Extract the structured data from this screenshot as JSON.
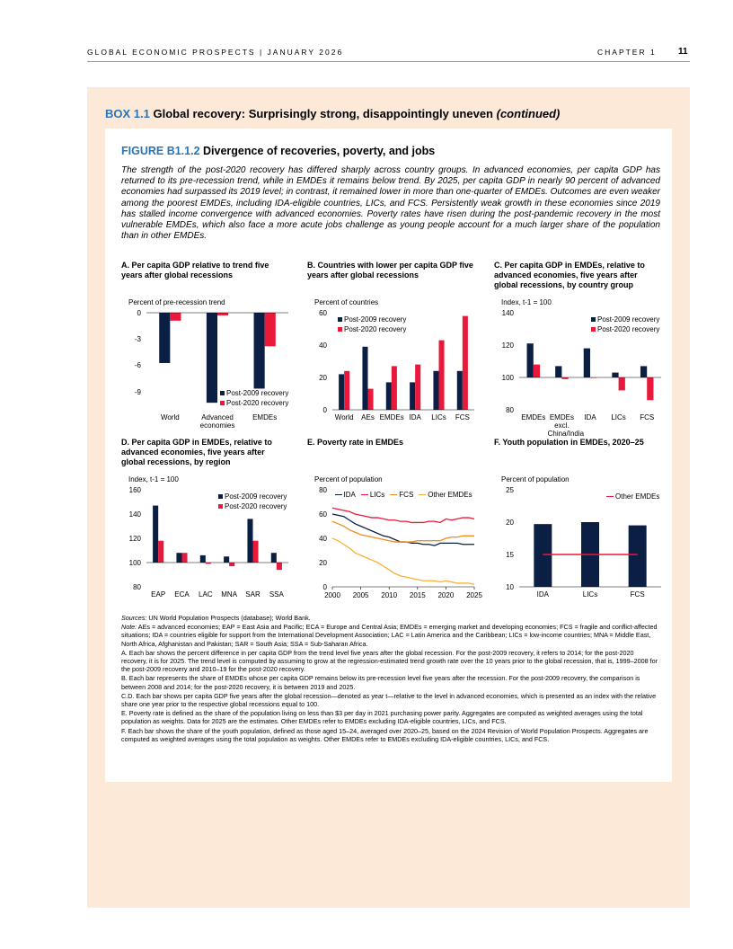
{
  "header": {
    "publication": "GLOBAL ECONOMIC PROSPECTS | JANUARY 2026",
    "chapter": "CHAPTER 1",
    "page": "11"
  },
  "box": {
    "label": "BOX 1.1",
    "title": "Global recovery: Surprisingly strong, disappointingly uneven",
    "suffix": "(continued)"
  },
  "figure": {
    "label": "FIGURE B1.1.2",
    "title": "Divergence of recoveries, poverty, and jobs",
    "intro": "The strength of the post-2020 recovery has differed sharply across country groups. In advanced economies, per capita GDP has returned to its pre-recession trend, while in EMDEs it remains below trend. By 2025, per capita GDP in nearly 90 percent of advanced economies had surpassed its 2019 level; in contrast, it remained lower in more than one-quarter of EMDEs. Outcomes are even weaker among the poorest EMDEs, including IDA-eligible countries, LICs, and FCS. Persistently weak growth in these economies since 2019 has stalled income convergence with advanced economies. Poverty rates have risen during the post-pandemic recovery in the most vulnerable EMDEs, which also face a more acute jobs challenge as young people account for a much larger share of the population than in other EMDEs."
  },
  "chart_data": [
    {
      "type": "bar",
      "title": "A. Per capita GDP relative to trend five years after global recessions",
      "y_label": "Percent of pre-recession trend",
      "categories": [
        "World",
        "Advanced economies",
        "EMDEs"
      ],
      "series": [
        {
          "name": "Post-2009 recovery",
          "color": "#0b1f45",
          "values": [
            -5.7,
            -10.2,
            -8.6
          ]
        },
        {
          "name": "Post-2020 recovery",
          "color": "#e8193a",
          "values": [
            -0.9,
            -0.3,
            -3.8
          ]
        }
      ],
      "ylim": [
        -11,
        0
      ],
      "yticks": [
        0,
        -3,
        -6,
        -9
      ],
      "legend": "lower right"
    },
    {
      "type": "bar",
      "title": "B. Countries with lower per capita GDP five years after global recessions",
      "y_label": "Percent of countries",
      "categories": [
        "World",
        "AEs",
        "EMDEs",
        "IDA",
        "LICs",
        "FCS"
      ],
      "series": [
        {
          "name": "Post-2009 recovery",
          "color": "#0b1f45",
          "values": [
            22,
            39,
            17,
            17,
            24,
            24
          ]
        },
        {
          "name": "Post-2020 recovery",
          "color": "#e8193a",
          "values": [
            24,
            13,
            27,
            28,
            43,
            58
          ]
        }
      ],
      "ylim": [
        0,
        60
      ],
      "yticks": [
        0,
        20,
        40,
        60
      ],
      "legend": "upper left"
    },
    {
      "type": "bar",
      "title": "C. Per capita GDP in EMDEs, relative to advanced economies, five years after global recessions, by country group",
      "y_label": "Index, t-1 = 100",
      "categories": [
        "EMDEs",
        "EMDEs excl. China/India",
        "IDA",
        "LICs",
        "FCS"
      ],
      "series": [
        {
          "name": "Post-2009 recovery",
          "color": "#0b1f45",
          "values": [
            121,
            107,
            118,
            103,
            107
          ]
        },
        {
          "name": "Post-2020 recovery",
          "color": "#e8193a",
          "values": [
            108,
            99,
            100,
            92,
            86
          ]
        }
      ],
      "ylim": [
        80,
        140
      ],
      "yticks": [
        80,
        100,
        120,
        140
      ],
      "baseline": 100,
      "legend": "upper right"
    },
    {
      "type": "bar",
      "title": "D. Per capita GDP in EMDEs, relative to advanced economies, five years after global recessions, by region",
      "y_label": "Index, t-1 = 100",
      "categories": [
        "EAP",
        "ECA",
        "LAC",
        "MNA",
        "SAR",
        "SSA"
      ],
      "series": [
        {
          "name": "Post-2009 recovery",
          "color": "#0b1f45",
          "values": [
            147,
            108,
            106,
            105,
            136,
            108
          ]
        },
        {
          "name": "Post-2020 recovery",
          "color": "#e8193a",
          "values": [
            118,
            108,
            99,
            97,
            118,
            94
          ]
        }
      ],
      "ylim": [
        80,
        160
      ],
      "yticks": [
        80,
        100,
        120,
        140,
        160
      ],
      "baseline": 100,
      "legend": "upper right"
    },
    {
      "type": "line",
      "title": "E. Poverty rate in EMDEs",
      "y_label": "Percent of population",
      "x": [
        2000,
        2001,
        2002,
        2003,
        2004,
        2005,
        2006,
        2007,
        2008,
        2009,
        2010,
        2011,
        2012,
        2013,
        2014,
        2015,
        2016,
        2017,
        2018,
        2019,
        2020,
        2021,
        2022,
        2023,
        2024,
        2025
      ],
      "series": [
        {
          "name": "IDA",
          "color": "#0b1f45",
          "values": [
            60,
            59,
            58,
            55,
            52,
            50,
            48,
            46,
            44,
            42,
            41,
            39,
            37,
            37,
            36,
            36,
            35,
            35,
            34,
            36,
            36,
            36,
            36,
            35,
            35,
            35
          ]
        },
        {
          "name": "LICs",
          "color": "#e8193a",
          "values": [
            65,
            64,
            63,
            62,
            60,
            59,
            58,
            57,
            57,
            56,
            55,
            55,
            54,
            54,
            53,
            53,
            53,
            54,
            54,
            53,
            56,
            55,
            56,
            57,
            57,
            56
          ]
        },
        {
          "name": "FCS",
          "color": "#f08c1e",
          "values": [
            54,
            52,
            50,
            47,
            45,
            43,
            42,
            41,
            40,
            39,
            38,
            37,
            37,
            37,
            37,
            38,
            38,
            38,
            38,
            38,
            40,
            41,
            41,
            42,
            42,
            42
          ]
        },
        {
          "name": "Other EMDEs",
          "color": "#f9b233",
          "values": [
            40,
            38,
            35,
            32,
            28,
            26,
            24,
            22,
            20,
            17,
            14,
            11,
            9,
            8,
            7,
            6,
            5,
            5,
            5,
            4,
            5,
            4,
            3,
            3,
            3,
            2
          ]
        }
      ],
      "xlim": [
        2000,
        2025
      ],
      "xticks": [
        2000,
        2005,
        2010,
        2015,
        2020,
        2025
      ],
      "ylim": [
        0,
        80
      ],
      "yticks": [
        0,
        20,
        40,
        60,
        80
      ],
      "legend": "upper center"
    },
    {
      "type": "bar",
      "title": "F. Youth population in EMDEs, 2020–25",
      "y_label": "Percent of population",
      "categories": [
        "IDA",
        "LICs",
        "FCS"
      ],
      "series": [
        {
          "color": "#0b1f45",
          "values": [
            19.7,
            20,
            19.5
          ]
        },
        {
          "name": "Other EMDEs",
          "type": "line",
          "color": "#e8193a",
          "values": [
            15,
            15,
            15
          ]
        }
      ],
      "ylim": [
        10,
        25
      ],
      "yticks": [
        10,
        15,
        20,
        25
      ],
      "legend": "upper right"
    }
  ],
  "notes": {
    "sources": {
      "label": "Sources:",
      "text": "UN World Population Prospects (database); World Bank."
    },
    "note": {
      "label": "Note:",
      "text": "AEs = advanced economies; EAP = East Asia and Pacific; ECA = Europe and Central Asia; EMDEs = emerging market and developing economies; FCS = fragile and conflict-affected situations; IDA = countries eligible for support from the International Development Association; LAC = Latin America and the Caribbean; LICs = low-income countries; MNA = Middle East, North Africa, Afghanistan and Pakistan; SAR = South Asia; SSA = Sub-Saharan Africa."
    },
    "panels": [
      "A. Each bar shows the percent difference in per capita GDP from the trend level five years after the global recession. For the post-2009 recovery, it refers to 2014; for the post-2020 recovery, it is for 2025. The trend level is computed by assuming to grow at the regression-estimated trend growth rate over the 10 years prior to the global recession, that is, 1999–2008 for the post-2009 recovery and 2010–19 for the post-2020 recovery.",
      "B. Each bar represents the share of EMDEs whose per capita GDP remains below its pre-recession level five years after the recession. For the post-2009 recovery, the comparison is between 2008 and 2014; for the post-2020 recovery, it is between 2019 and 2025.",
      "C.D. Each bar shows per capita GDP five years after the global recession—denoted as year t—relative to the level in advanced economies, which is presented as an index with the relative share one year prior to the respective global recessions equal to 100.",
      "E. Poverty rate is defined as the share of the population living on less than $3 per day in 2021 purchasing power parity. Aggregates are computed as weighted averages using the total population as weights. Data for 2025 are the estimates. Other EMDEs refer to EMDEs excluding IDA-eligible countries, LICs, and FCS.",
      "F. Each bar shows the share of the youth population, defined as those aged 15–24, averaged over 2020–25, based on the 2024 Revision of World Population Prospects. Aggregates are computed as weighted averages using the total population as weights. Other EMDEs refer to EMDEs excluding IDA-eligible countries, LICs, and FCS."
    ]
  }
}
